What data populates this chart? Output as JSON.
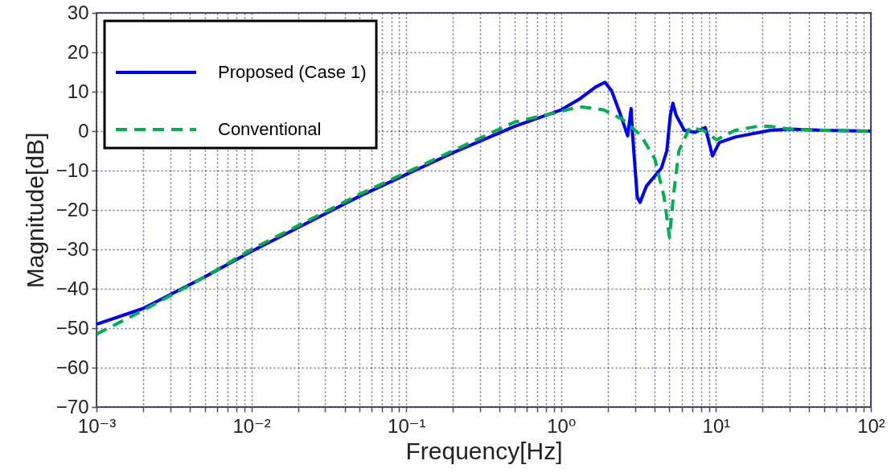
{
  "chart_data": {
    "type": "line",
    "xlabel": "Frequency[Hz]",
    "ylabel": "Magnitude[dB]",
    "xlim": [
      0.001,
      100
    ],
    "ylim": [
      -70,
      30
    ],
    "log": "x",
    "grid": true,
    "legend": "top left",
    "xticks": [
      {
        "value": 0.001,
        "label": "10⁻³"
      },
      {
        "value": 0.002,
        "label": null
      },
      {
        "value": 0.003,
        "label": null
      },
      {
        "value": 0.004,
        "label": null
      },
      {
        "value": 0.005,
        "label": null
      },
      {
        "value": 0.006,
        "label": null
      },
      {
        "value": 0.007,
        "label": null
      },
      {
        "value": 0.008,
        "label": null
      },
      {
        "value": 0.009,
        "label": null
      },
      {
        "value": 0.01,
        "label": "10⁻²"
      },
      {
        "value": 0.02,
        "label": null
      },
      {
        "value": 0.03,
        "label": null
      },
      {
        "value": 0.04,
        "label": null
      },
      {
        "value": 0.05,
        "label": null
      },
      {
        "value": 0.06,
        "label": null
      },
      {
        "value": 0.07,
        "label": null
      },
      {
        "value": 0.08,
        "label": null
      },
      {
        "value": 0.09,
        "label": null
      },
      {
        "value": 0.1,
        "label": "10⁻¹"
      },
      {
        "value": 0.2,
        "label": null
      },
      {
        "value": 0.3,
        "label": null
      },
      {
        "value": 0.4,
        "label": null
      },
      {
        "value": 0.5,
        "label": null
      },
      {
        "value": 0.6,
        "label": null
      },
      {
        "value": 0.7,
        "label": null
      },
      {
        "value": 0.8,
        "label": null
      },
      {
        "value": 0.9,
        "label": null
      },
      {
        "value": 1,
        "label": "10⁰"
      },
      {
        "value": 2,
        "label": null
      },
      {
        "value": 3,
        "label": null
      },
      {
        "value": 4,
        "label": null
      },
      {
        "value": 5,
        "label": null
      },
      {
        "value": 6,
        "label": null
      },
      {
        "value": 7,
        "label": null
      },
      {
        "value": 8,
        "label": null
      },
      {
        "value": 9,
        "label": null
      },
      {
        "value": 10,
        "label": "10¹"
      },
      {
        "value": 20,
        "label": null
      },
      {
        "value": 30,
        "label": null
      },
      {
        "value": 40,
        "label": null
      },
      {
        "value": 50,
        "label": null
      },
      {
        "value": 60,
        "label": null
      },
      {
        "value": 70,
        "label": null
      },
      {
        "value": 80,
        "label": null
      },
      {
        "value": 90,
        "label": null
      },
      {
        "value": 100,
        "label": "10²"
      }
    ],
    "yticks": [
      {
        "value": -70,
        "label": "−70"
      },
      {
        "value": -60,
        "label": "−60"
      },
      {
        "value": -50,
        "label": "−50"
      },
      {
        "value": -40,
        "label": "−40"
      },
      {
        "value": -30,
        "label": "−30"
      },
      {
        "value": -20,
        "label": "−20"
      },
      {
        "value": -10,
        "label": "−10"
      },
      0,
      10,
      20,
      30
    ],
    "series": [
      {
        "name": "Proposed (Case 1)",
        "color": "#0000ff",
        "line_style": "solid",
        "x": [
          0.001,
          0.002,
          0.005,
          0.01,
          0.02,
          0.05,
          0.1,
          0.2,
          0.5,
          1,
          1.31,
          1.67,
          1.92,
          2.12,
          2.39,
          2.69,
          2.83,
          2.9,
          3.1,
          3.23,
          3.56,
          4.44,
          4.81,
          5.07,
          5.27,
          5.53,
          6.24,
          7.32,
          8.53,
          9.49,
          10.5,
          13.3,
          22.4,
          30,
          50,
          100
        ],
        "values": [
          -49,
          -45,
          -37,
          -30.5,
          -24.5,
          -16.5,
          -11,
          -5.5,
          1.2,
          5.4,
          8.1,
          11.2,
          12.4,
          10.2,
          4.7,
          -1.2,
          5.7,
          -1.5,
          -16.7,
          -18.1,
          -13.9,
          -9.4,
          -5,
          4,
          7.1,
          4,
          0.2,
          -0.3,
          0.9,
          -6.3,
          -2.9,
          -1.5,
          0.2,
          0.5,
          0.2,
          0
        ]
      },
      {
        "name": "Conventional",
        "color": "#00b04f",
        "line_style": "dashed",
        "x": [
          0.001,
          0.002,
          0.005,
          0.01,
          0.02,
          0.05,
          0.1,
          0.2,
          0.5,
          1,
          1.31,
          1.88,
          2.49,
          3.29,
          4.02,
          4.62,
          5.01,
          5.3,
          5.76,
          6.76,
          8.26,
          10.1,
          13.3,
          18.4,
          22.4,
          30,
          50,
          100
        ],
        "values": [
          -51.5,
          -45.5,
          -37,
          -30,
          -24,
          -16,
          -10.5,
          -5,
          2.3,
          5,
          6.2,
          5.4,
          3,
          -1.2,
          -7,
          -16.7,
          -27,
          -16.7,
          -5,
          0.9,
          0.2,
          -2.2,
          0.2,
          1.2,
          1.2,
          0.5,
          0.2,
          0
        ]
      }
    ]
  }
}
